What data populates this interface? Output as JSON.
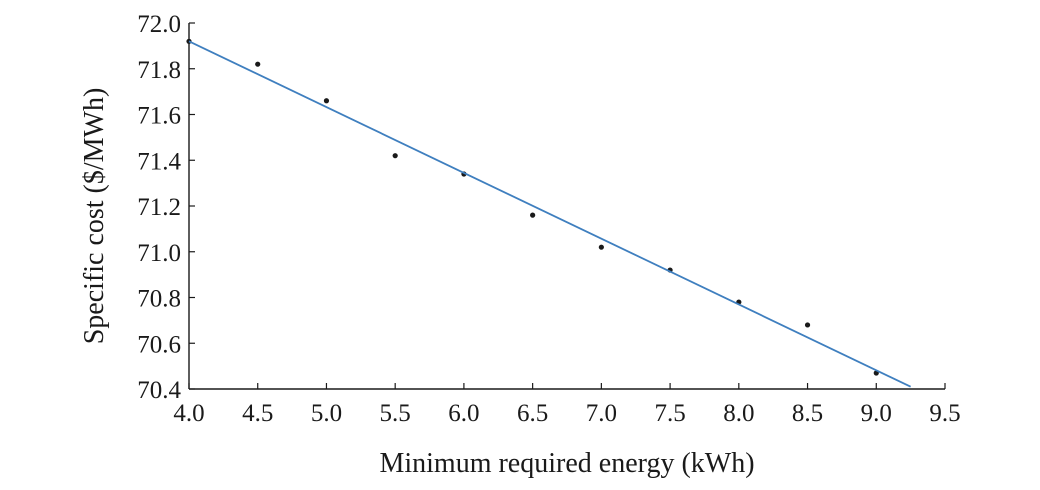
{
  "chart_data": {
    "type": "scatter",
    "xlabel": "Minimum required energy (kWh)",
    "ylabel": "Specific cost ($/MWh)",
    "xlim": [
      4.0,
      9.5
    ],
    "ylim": [
      70.4,
      72.0
    ],
    "x_ticks": [
      "4.0",
      "4.5",
      "5.0",
      "5.5",
      "6.0",
      "6.5",
      "7.0",
      "7.5",
      "8.0",
      "8.5",
      "9.0",
      "9.5"
    ],
    "y_ticks": [
      "70.4",
      "70.6",
      "70.8",
      "71.0",
      "71.2",
      "71.4",
      "71.6",
      "71.8",
      "72.0"
    ],
    "series": [
      {
        "kind": "points",
        "x": [
          4.0,
          4.5,
          5.0,
          5.5,
          6.0,
          6.5,
          7.0,
          7.5,
          8.0,
          8.5,
          9.0
        ],
        "y": [
          71.92,
          71.82,
          71.66,
          71.42,
          71.34,
          71.16,
          71.02,
          70.92,
          70.78,
          70.68,
          70.47
        ]
      },
      {
        "kind": "fit-line",
        "x": [
          4.0,
          9.25
        ],
        "y": [
          71.92,
          70.41
        ]
      }
    ],
    "grid": false,
    "legend": "none",
    "colors": {
      "points": "#1a1a1a",
      "line": "#3f7fbf",
      "axis": "#1a1a1a"
    }
  }
}
